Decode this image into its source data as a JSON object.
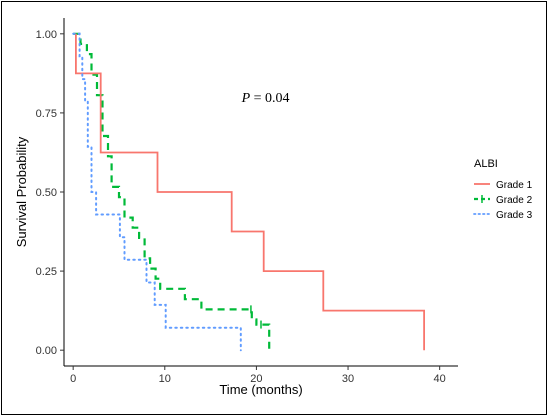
{
  "chart_data": {
    "type": "line",
    "subtype": "kaplan-meier",
    "title": "",
    "xlabel": "Time (months)",
    "ylabel": "Survival Probability",
    "xlim": [
      -1,
      42
    ],
    "ylim": [
      -0.05,
      1.05
    ],
    "xticks": [
      0,
      10,
      20,
      30,
      40
    ],
    "yticks": [
      0.0,
      0.25,
      0.5,
      0.75,
      1.0
    ],
    "ytick_labels": [
      "0.00",
      "0.25",
      "0.50",
      "0.75",
      "1.00"
    ],
    "xtick_labels": [
      "0",
      "10",
      "20",
      "30",
      "40"
    ],
    "annotation": {
      "prefix": "P",
      "text": " = 0.04",
      "x": 21,
      "y": 0.8
    },
    "legend": {
      "title": "ALBI",
      "placement": "right"
    },
    "grid": false,
    "series": [
      {
        "name": "Grade 1",
        "color": "#F8766D",
        "style": "solid",
        "points": [
          [
            0.3,
            1.0
          ],
          [
            0.3,
            0.875
          ],
          [
            3.0,
            0.875
          ],
          [
            3.0,
            0.625
          ],
          [
            9.2,
            0.625
          ],
          [
            9.2,
            0.5
          ],
          [
            17.3,
            0.5
          ],
          [
            17.3,
            0.375
          ],
          [
            20.8,
            0.375
          ],
          [
            20.8,
            0.25
          ],
          [
            27.3,
            0.25
          ],
          [
            27.3,
            0.125
          ],
          [
            38.3,
            0.125
          ],
          [
            38.3,
            0.0
          ]
        ]
      },
      {
        "name": "Grade 2",
        "color": "#00BA38",
        "style": "dashed",
        "points": [
          [
            0,
            1.0
          ],
          [
            0.8,
            1.0
          ],
          [
            0.8,
            0.968
          ],
          [
            1.5,
            0.968
          ],
          [
            1.5,
            0.936
          ],
          [
            2.0,
            0.936
          ],
          [
            2.0,
            0.871
          ],
          [
            2.6,
            0.871
          ],
          [
            2.6,
            0.806
          ],
          [
            3.2,
            0.806
          ],
          [
            3.2,
            0.677
          ],
          [
            3.8,
            0.677
          ],
          [
            3.8,
            0.613
          ],
          [
            4.2,
            0.613
          ],
          [
            4.2,
            0.516
          ],
          [
            5.0,
            0.516
          ],
          [
            5.0,
            0.484
          ],
          [
            5.6,
            0.484
          ],
          [
            5.6,
            0.419
          ],
          [
            6.5,
            0.419
          ],
          [
            6.5,
            0.387
          ],
          [
            7.2,
            0.387
          ],
          [
            7.2,
            0.355
          ],
          [
            7.8,
            0.355
          ],
          [
            7.8,
            0.29
          ],
          [
            8.4,
            0.29
          ],
          [
            8.4,
            0.258
          ],
          [
            9.0,
            0.258
          ],
          [
            9.0,
            0.226
          ],
          [
            9.5,
            0.226
          ],
          [
            9.5,
            0.194
          ],
          [
            12.2,
            0.194
          ],
          [
            12.2,
            0.161
          ],
          [
            14.0,
            0.161
          ],
          [
            14.0,
            0.129
          ],
          [
            19.5,
            0.129
          ],
          [
            19.5,
            0.097
          ],
          [
            20.0,
            0.097
          ],
          [
            20.0,
            0.081
          ],
          [
            21.4,
            0.081
          ],
          [
            21.4,
            0.0
          ]
        ],
        "censor_points": [
          [
            19.4,
            0.129
          ],
          [
            20.5,
            0.081
          ]
        ]
      },
      {
        "name": "Grade 3",
        "color": "#619CFF",
        "style": "dotted",
        "points": [
          [
            0,
            1.0
          ],
          [
            0.7,
            1.0
          ],
          [
            0.7,
            0.929
          ],
          [
            1.0,
            0.929
          ],
          [
            1.0,
            0.857
          ],
          [
            1.3,
            0.857
          ],
          [
            1.3,
            0.786
          ],
          [
            1.6,
            0.786
          ],
          [
            1.6,
            0.643
          ],
          [
            2.0,
            0.643
          ],
          [
            2.0,
            0.5
          ],
          [
            2.5,
            0.5
          ],
          [
            2.5,
            0.429
          ],
          [
            5.1,
            0.429
          ],
          [
            5.1,
            0.357
          ],
          [
            5.6,
            0.357
          ],
          [
            5.6,
            0.286
          ],
          [
            8.0,
            0.286
          ],
          [
            8.0,
            0.214
          ],
          [
            8.9,
            0.214
          ],
          [
            8.9,
            0.143
          ],
          [
            10.1,
            0.143
          ],
          [
            10.1,
            0.071
          ],
          [
            18.3,
            0.071
          ],
          [
            18.3,
            0.0
          ]
        ]
      }
    ]
  }
}
